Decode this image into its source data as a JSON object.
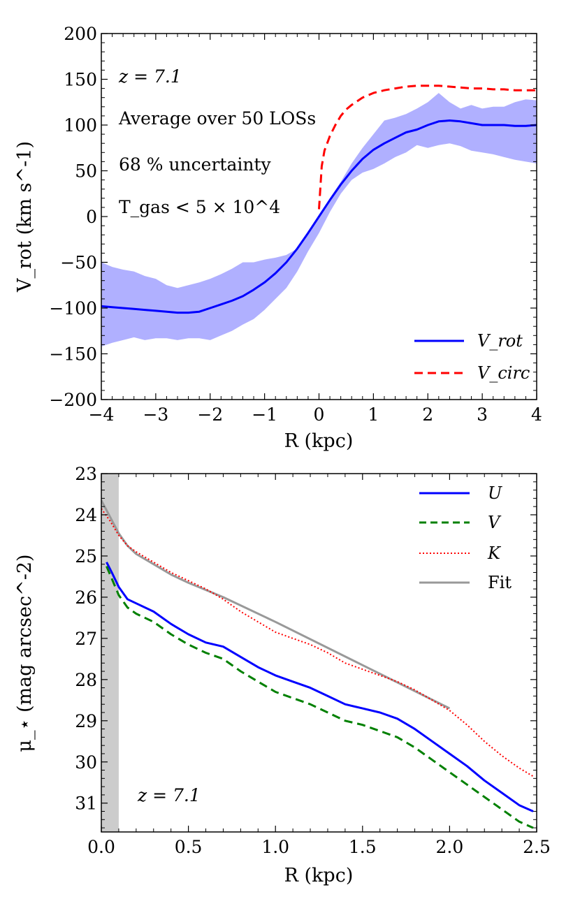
{
  "chart_data": [
    {
      "type": "line",
      "title": "",
      "xlabel": "R (kpc)",
      "ylabel": "V_rot (km s^-1)",
      "xlim": [
        -4,
        4
      ],
      "ylim": [
        -200,
        200
      ],
      "xticks": [
        -4,
        -3,
        -2,
        -1,
        0,
        1,
        2,
        3,
        4
      ],
      "yticks": [
        -200,
        -150,
        -100,
        -50,
        0,
        50,
        100,
        150,
        200
      ],
      "xtick_labels": [
        "−4",
        "−3",
        "−2",
        "−1",
        "0",
        "1",
        "2",
        "3",
        "4"
      ],
      "ytick_labels": [
        "−200",
        "−150",
        "−100",
        "−50",
        "0",
        "50",
        "100",
        "150",
        "200"
      ],
      "annotations": [
        "z = 7.1",
        "Average over 50 LOSs",
        "68 % uncertainty",
        "T_gas < 5 × 10^4"
      ],
      "legend_placement": "lower-right",
      "band": {
        "x": [
          -4,
          -3.8,
          -3.6,
          -3.4,
          -3.2,
          -3.0,
          -2.8,
          -2.6,
          -2.4,
          -2.2,
          -2.0,
          -1.8,
          -1.6,
          -1.4,
          -1.2,
          -1.0,
          -0.8,
          -0.6,
          -0.4,
          -0.2,
          0.0,
          0.2,
          0.4,
          0.6,
          0.8,
          1.0,
          1.2,
          1.4,
          1.6,
          1.8,
          2.0,
          2.2,
          2.4,
          2.6,
          2.8,
          3.0,
          3.2,
          3.4,
          3.6,
          3.8,
          4.0
        ],
        "upper": [
          -50,
          -55,
          -58,
          -60,
          -65,
          -68,
          -75,
          -78,
          -75,
          -72,
          -68,
          -63,
          -57,
          -50,
          -50,
          -47,
          -45,
          -42,
          -35,
          -20,
          0,
          20,
          38,
          58,
          75,
          90,
          105,
          108,
          112,
          118,
          125,
          135,
          125,
          118,
          122,
          118,
          120,
          120,
          125,
          128,
          127
        ],
        "lower": [
          -142,
          -138,
          -135,
          -132,
          -135,
          -133,
          -133,
          -135,
          -133,
          -133,
          -135,
          -130,
          -125,
          -118,
          -112,
          -102,
          -90,
          -78,
          -60,
          -38,
          -18,
          5,
          25,
          40,
          48,
          52,
          58,
          65,
          70,
          78,
          75,
          78,
          80,
          77,
          72,
          70,
          68,
          65,
          62,
          60,
          58
        ]
      },
      "series": [
        {
          "name": "V_rot",
          "color": "#0000ff",
          "style": "solid",
          "x": [
            -4,
            -3.8,
            -3.6,
            -3.4,
            -3.2,
            -3.0,
            -2.8,
            -2.6,
            -2.4,
            -2.2,
            -2.0,
            -1.8,
            -1.6,
            -1.4,
            -1.2,
            -1.0,
            -0.8,
            -0.6,
            -0.4,
            -0.2,
            0.0,
            0.2,
            0.4,
            0.6,
            0.8,
            1.0,
            1.2,
            1.4,
            1.6,
            1.8,
            2.0,
            2.2,
            2.4,
            2.6,
            2.8,
            3.0,
            3.2,
            3.4,
            3.6,
            3.8,
            4.0
          ],
          "y": [
            -98,
            -99,
            -100,
            -101,
            -102,
            -103,
            -104,
            -105,
            -105,
            -104,
            -100,
            -96,
            -92,
            -87,
            -80,
            -72,
            -62,
            -50,
            -35,
            -18,
            0,
            18,
            35,
            50,
            63,
            73,
            80,
            86,
            92,
            95,
            100,
            104,
            105,
            104,
            102,
            100,
            100,
            100,
            99,
            99,
            100
          ]
        },
        {
          "name": "V_circ",
          "color": "#ff0000",
          "style": "dashed",
          "x": [
            0.0,
            0.05,
            0.1,
            0.2,
            0.3,
            0.4,
            0.5,
            0.6,
            0.8,
            1.0,
            1.2,
            1.4,
            1.6,
            1.8,
            2.0,
            2.2,
            2.4,
            2.6,
            2.8,
            3.0,
            3.2,
            3.4,
            3.6,
            3.8,
            4.0
          ],
          "y": [
            8,
            55,
            72,
            88,
            100,
            110,
            117,
            122,
            130,
            135,
            138,
            140,
            142,
            143,
            143,
            143,
            142,
            141,
            140,
            140,
            139,
            139,
            138,
            138,
            138
          ]
        }
      ]
    },
    {
      "type": "line",
      "title": "",
      "xlabel": "R (kpc)",
      "ylabel": "μ_⋆ (mag arcsec^-2)",
      "xlim": [
        0,
        2.5
      ],
      "ylim": [
        31.7,
        23
      ],
      "y_inverted": true,
      "xticks": [
        0.0,
        0.5,
        1.0,
        1.5,
        2.0,
        2.5
      ],
      "yticks": [
        23,
        24,
        25,
        26,
        27,
        28,
        29,
        30,
        31
      ],
      "xtick_labels": [
        "0.0",
        "0.5",
        "1.0",
        "1.5",
        "2.0",
        "2.5"
      ],
      "ytick_labels": [
        "23",
        "24",
        "25",
        "26",
        "27",
        "28",
        "29",
        "30",
        "31"
      ],
      "shaded_region": [
        0,
        0.1
      ],
      "annotations": [
        "z = 7.1"
      ],
      "legend_placement": "upper-right",
      "series": [
        {
          "name": "U",
          "color": "#0000ff",
          "style": "solid",
          "x": [
            0.03,
            0.06,
            0.1,
            0.15,
            0.2,
            0.3,
            0.4,
            0.5,
            0.6,
            0.7,
            0.8,
            0.9,
            1.0,
            1.1,
            1.2,
            1.3,
            1.4,
            1.5,
            1.6,
            1.7,
            1.8,
            1.9,
            2.0,
            2.1,
            2.2,
            2.3,
            2.4,
            2.48
          ],
          "y": [
            25.15,
            25.4,
            25.75,
            26.05,
            26.15,
            26.35,
            26.65,
            26.9,
            27.1,
            27.2,
            27.45,
            27.7,
            27.9,
            28.05,
            28.2,
            28.4,
            28.6,
            28.7,
            28.8,
            28.95,
            29.2,
            29.5,
            29.8,
            30.1,
            30.45,
            30.75,
            31.05,
            31.2
          ]
        },
        {
          "name": "V",
          "color": "#008000",
          "style": "dashed",
          "x": [
            0.03,
            0.06,
            0.1,
            0.15,
            0.2,
            0.3,
            0.4,
            0.5,
            0.6,
            0.7,
            0.8,
            0.9,
            1.0,
            1.1,
            1.2,
            1.3,
            1.4,
            1.5,
            1.6,
            1.7,
            1.8,
            1.9,
            2.0,
            2.1,
            2.2,
            2.3,
            2.4,
            2.48
          ],
          "y": [
            25.25,
            25.55,
            25.95,
            26.25,
            26.4,
            26.6,
            26.9,
            27.15,
            27.35,
            27.5,
            27.8,
            28.05,
            28.3,
            28.45,
            28.6,
            28.8,
            29.0,
            29.1,
            29.25,
            29.4,
            29.65,
            29.95,
            30.25,
            30.55,
            30.85,
            31.15,
            31.45,
            31.6
          ]
        },
        {
          "name": "K",
          "color": "#ff0000",
          "style": "dotted",
          "x": [
            0.0,
            0.05,
            0.1,
            0.15,
            0.2,
            0.3,
            0.4,
            0.5,
            0.6,
            0.7,
            0.8,
            0.9,
            1.0,
            1.1,
            1.2,
            1.3,
            1.4,
            1.5,
            1.6,
            1.7,
            1.8,
            1.9,
            2.0,
            2.1,
            2.2,
            2.3,
            2.4,
            2.48
          ],
          "y": [
            23.85,
            24.15,
            24.5,
            24.75,
            24.9,
            25.15,
            25.4,
            25.6,
            25.8,
            26.05,
            26.35,
            26.6,
            26.85,
            27.0,
            27.15,
            27.35,
            27.6,
            27.75,
            27.9,
            28.05,
            28.25,
            28.5,
            28.75,
            29.1,
            29.5,
            29.85,
            30.15,
            30.35
          ]
        },
        {
          "name": "Fit",
          "color": "#999999",
          "style": "solid",
          "x": [
            0.0,
            0.05,
            0.1,
            0.15,
            0.2,
            0.3,
            0.4,
            0.5,
            0.7,
            1.0,
            1.5,
            2.0
          ],
          "y": [
            23.65,
            24.05,
            24.45,
            24.75,
            24.95,
            25.2,
            25.45,
            25.65,
            26.0,
            26.6,
            27.65,
            28.7
          ]
        }
      ]
    }
  ]
}
